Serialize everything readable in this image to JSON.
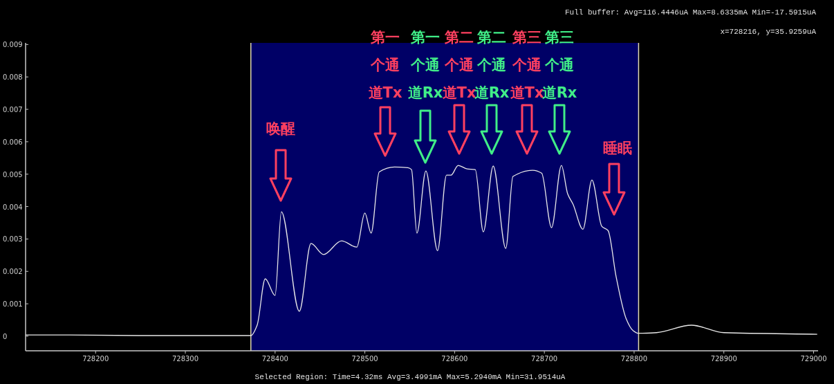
{
  "chart_data": {
    "type": "line",
    "x": [
      728122,
      728171,
      728248,
      728325,
      728373,
      728380,
      728389,
      728400,
      728407,
      728427,
      728440,
      728454,
      728474,
      728491,
      728500,
      728507,
      728516,
      728533,
      728548,
      728552,
      728558,
      728568,
      728581,
      728591,
      728596,
      728604,
      728614,
      728623,
      728632,
      728643,
      728657,
      728665,
      728687,
      728697,
      728708,
      728719,
      728726,
      728732,
      728743,
      728753,
      728764,
      728771,
      728780,
      728791,
      728799,
      728805,
      728825,
      728864,
      728900,
      729004
    ],
    "series": [
      {
        "color": "#e8e8e8",
        "values": [
          4e-05,
          4e-05,
          2e-05,
          2e-05,
          2e-05,
          0.00034,
          0.00177,
          0.00126,
          0.00384,
          0.00077,
          0.00286,
          0.00252,
          0.00294,
          0.00275,
          0.0038,
          0.00318,
          0.00507,
          0.00522,
          0.0052,
          0.00514,
          0.00318,
          0.0051,
          0.00264,
          0.00497,
          0.00497,
          0.00527,
          0.00516,
          0.00514,
          0.00322,
          0.00525,
          0.00271,
          0.00493,
          0.00512,
          0.00503,
          0.00335,
          0.00527,
          0.00439,
          0.00407,
          0.0033,
          0.00482,
          0.00339,
          0.00326,
          0.00183,
          0.00055,
          0.00017,
          9e-05,
          0.00011,
          0.00034,
          0.00011,
          6e-05
        ]
      }
    ],
    "xlim": [
      728122,
      729005
    ],
    "ylim": [
      -0.00045,
      0.00905
    ],
    "xticks": [
      728200,
      728300,
      728400,
      728500,
      728600,
      728700,
      728800,
      728900,
      729000
    ],
    "yticks": [
      0,
      0.001,
      0.002,
      0.003,
      0.004,
      0.005,
      0.006,
      0.007,
      0.008,
      0.009
    ],
    "bands": [
      {
        "axis": "x",
        "from": 728373,
        "to": 728805,
        "color": "#000066"
      }
    ],
    "ref_lines": [
      {
        "axis": "x",
        "value": 728373,
        "color": "#e0d8b0"
      },
      {
        "axis": "x",
        "value": 728805,
        "color": "#e0d8b0"
      }
    ],
    "annotations": [
      "Full buffer: Avg=116.4446uA Max=8.6335mA Min=-17.5915uA",
      "x=728216, y=35.9259uA",
      "Selected Region: Time=4.32ms Avg=3.4991mA Max=5.2940mA Min=31.9514uA",
      "唤醒",
      "第一个通道Tx",
      "第一个通道Rx",
      "第二个通道Tx",
      "第二个通道Rx",
      "第三个通道Tx",
      "第三个通道Rx",
      "睡眠"
    ]
  }
}
